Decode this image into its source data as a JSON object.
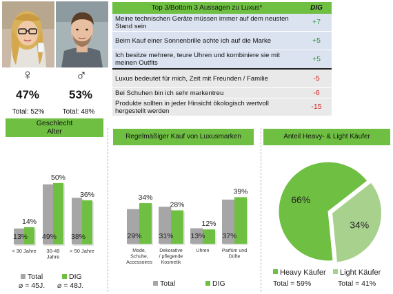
{
  "gender": {
    "female": {
      "symbol": "♀",
      "percent": "47%",
      "total": "Total: 52%"
    },
    "male": {
      "symbol": "♂",
      "percent": "53%",
      "total": "Total: 48%"
    },
    "header": "Geschlecht"
  },
  "statements": {
    "title": "Top 3/Bottom 3 Aussagen zu Luxus*",
    "col_label": "DIG",
    "top": [
      {
        "text": "Meine technischen Geräte müssen immer auf dem neusten Stand sein",
        "value": "+7"
      },
      {
        "text": "Beim Kauf einer Sonnenbrille achte ich auf die Marke",
        "value": "+5"
      },
      {
        "text": "Ich besitze mehrere, teure Uhren und kombiniere sie mit meinen Outfits",
        "value": "+5"
      }
    ],
    "bottom": [
      {
        "text": "Luxus bedeutet für mich, Zeit mit Freunden / Familie",
        "value": "-5"
      },
      {
        "text": "Bei Schuhen bin ich sehr markentreu",
        "value": "-6"
      },
      {
        "text": "Produkte sollten in jeder Hinsicht ökologisch wertvoll hergestellt werden",
        "value": "-15"
      }
    ]
  },
  "colors": {
    "total": "#a6a6a6",
    "dig": "#6fbf43",
    "pie_light": "#a9d18e"
  },
  "chart_data": [
    {
      "type": "bar",
      "title": "Alter",
      "categories": [
        "< 30 Jahre",
        "30-49 Jahre",
        "> 50 Jahre"
      ],
      "category_lines": [
        [
          "< 30 Jahre"
        ],
        [
          "30-49",
          "Jahre"
        ],
        [
          "> 50 Jahre"
        ]
      ],
      "series": [
        {
          "name": "Total",
          "values": [
            13,
            49,
            38
          ]
        },
        {
          "name": "DIG",
          "values": [
            14,
            50,
            36
          ]
        }
      ],
      "ylim": [
        0,
        55
      ],
      "legend_position": "bottom",
      "footnotes": {
        "total": "⌀ = 45J.",
        "dig": "⌀ = 48J."
      }
    },
    {
      "type": "bar",
      "title": "Regelmäßiger Kauf von Luxusmarken",
      "categories": [
        "Mode, Schuhe, Accessoires",
        "Dekorative / pflegende Kosmetik",
        "Uhren",
        "Parfüm und Düfte"
      ],
      "category_lines": [
        [
          "Mode,",
          "Schuhe,",
          "Accessoires"
        ],
        [
          "Dekorative",
          "/ pflegende",
          "Kosmetik"
        ],
        [
          "Uhren"
        ],
        [
          "Parfüm und",
          "Düfte"
        ]
      ],
      "series": [
        {
          "name": "Total",
          "values": [
            29,
            31,
            13,
            37
          ]
        },
        {
          "name": "DIG",
          "values": [
            34,
            28,
            12,
            39
          ]
        }
      ],
      "ylim": [
        0,
        45
      ],
      "legend_position": "bottom"
    },
    {
      "type": "pie",
      "title": "Anteil Heavy- & Light Käufer",
      "slices": [
        {
          "name": "Heavy Käufer",
          "value": 66,
          "label": "66%",
          "total": "Total = 59%"
        },
        {
          "name": "Light Käufer",
          "value": 34,
          "label": "34%",
          "total": "Total = 41%"
        }
      ],
      "legend_position": "bottom"
    }
  ]
}
